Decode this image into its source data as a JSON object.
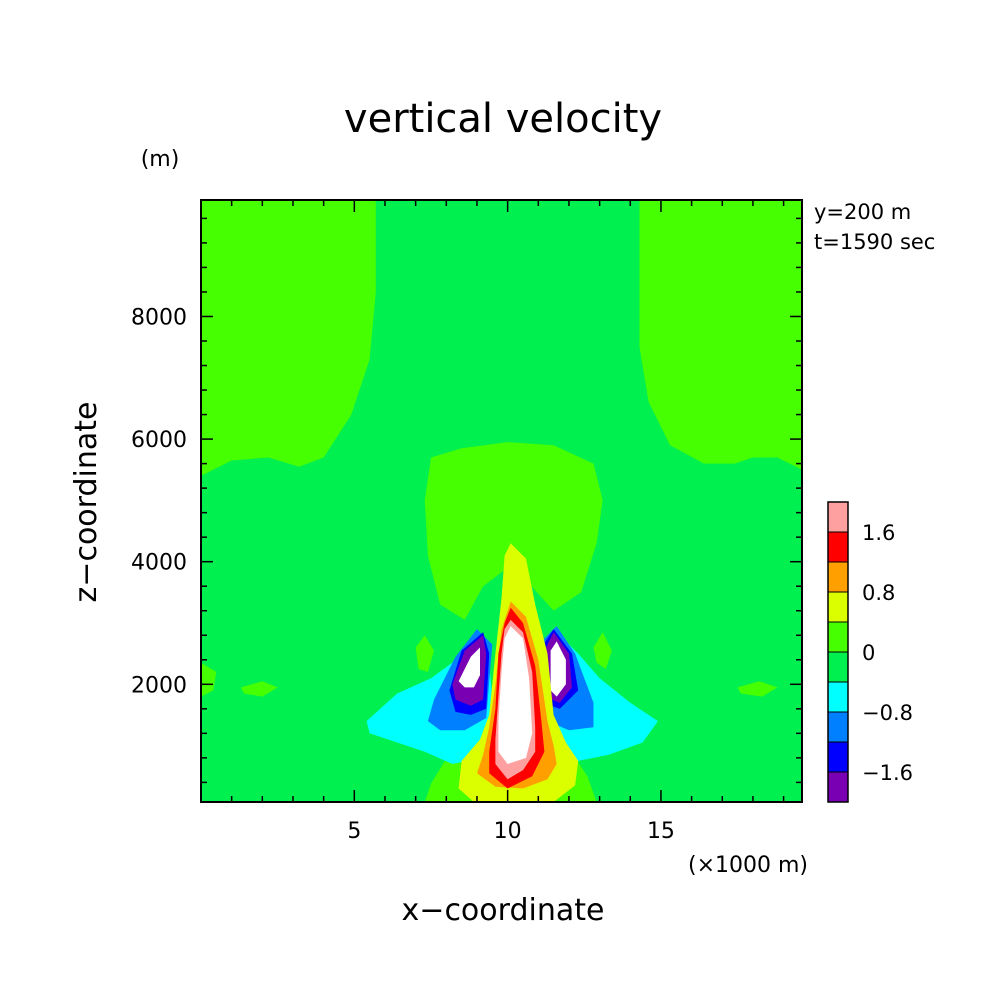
{
  "chart_data": {
    "type": "heatmap",
    "title": "vertical velocity",
    "xlabel": "x−coordinate",
    "ylabel": "z−coordinate",
    "x_unit": "(×1000 m)",
    "y_unit": "(m)",
    "annotations": [
      "y=200 m",
      "t=1590 sec"
    ],
    "xlim": [
      0,
      19.6
    ],
    "ylim": [
      80,
      9900
    ],
    "xticks": [
      5,
      10,
      15
    ],
    "yticks": [
      2000,
      4000,
      6000,
      8000
    ],
    "xtick_labels": [
      "5",
      "10",
      "15"
    ],
    "ytick_labels": [
      "2000",
      "4000",
      "6000",
      "8000"
    ],
    "grid": false,
    "colorbar": {
      "placement": "right",
      "levels": [
        {
          "min": null,
          "max": -1.6,
          "color": "#7a00b4"
        },
        {
          "min": -1.6,
          "max": -1.2,
          "color": "#0000ff"
        },
        {
          "min": -1.2,
          "max": -0.8,
          "color": "#0080ff"
        },
        {
          "min": -0.8,
          "max": -0.4,
          "color": "#00ffff"
        },
        {
          "min": -0.4,
          "max": 0,
          "color": "#00f050"
        },
        {
          "min": 0,
          "max": 0.4,
          "color": "#46ff00"
        },
        {
          "min": 0.4,
          "max": 0.8,
          "color": "#dcff00"
        },
        {
          "min": 0.8,
          "max": 1.2,
          "color": "#ffa000"
        },
        {
          "min": 1.2,
          "max": 1.6,
          "color": "#ff0000"
        },
        {
          "min": 1.6,
          "max": 2.0,
          "color": "#ffa0a0"
        },
        {
          "min": 2.0,
          "max": null,
          "color": "#ffffff"
        }
      ],
      "tick_labels": [
        "−1.6",
        "−0.8",
        "0",
        "0.8",
        "1.6"
      ],
      "tick_values": [
        -1.6,
        -0.8,
        0,
        0.8,
        1.6
      ]
    },
    "regions": [
      {
        "name": "upper-left-positive",
        "level": 0.2,
        "poly": [
          [
            0,
            9900
          ],
          [
            5.7,
            9900
          ],
          [
            5.7,
            8400
          ],
          [
            5.5,
            7300
          ],
          [
            4.9,
            6400
          ],
          [
            4.0,
            5700
          ],
          [
            3.2,
            5550
          ],
          [
            2.2,
            5700
          ],
          [
            1.0,
            5650
          ],
          [
            0,
            5400
          ]
        ]
      },
      {
        "name": "upper-right-positive",
        "level": 0.2,
        "poly": [
          [
            14.3,
            9900
          ],
          [
            19.6,
            9900
          ],
          [
            19.6,
            5500
          ],
          [
            18.8,
            5700
          ],
          [
            18.0,
            5700
          ],
          [
            17.4,
            5600
          ],
          [
            16.4,
            5600
          ],
          [
            15.3,
            5900
          ],
          [
            14.6,
            6600
          ],
          [
            14.3,
            7500
          ],
          [
            14.3,
            8400
          ]
        ]
      },
      {
        "name": "central-positive-plume",
        "level": 0.2,
        "poly": [
          [
            7.5,
            5700
          ],
          [
            8.5,
            5850
          ],
          [
            10.0,
            5950
          ],
          [
            11.5,
            5900
          ],
          [
            12.8,
            5600
          ],
          [
            13.1,
            5000
          ],
          [
            12.9,
            4300
          ],
          [
            12.4,
            3500
          ],
          [
            11.5,
            3200
          ],
          [
            10.6,
            3700
          ],
          [
            10.0,
            3900
          ],
          [
            9.2,
            3600
          ],
          [
            8.6,
            3050
          ],
          [
            7.8,
            3300
          ],
          [
            7.4,
            4100
          ],
          [
            7.3,
            5000
          ]
        ]
      },
      {
        "name": "lower-center-positive",
        "level": 0.2,
        "poly": [
          [
            7.3,
            80
          ],
          [
            7.5,
            380
          ],
          [
            8.2,
            950
          ],
          [
            9.1,
            1300
          ],
          [
            10.0,
            1500
          ],
          [
            11.0,
            1300
          ],
          [
            12.0,
            950
          ],
          [
            12.6,
            500
          ],
          [
            12.9,
            80
          ]
        ]
      },
      {
        "name": "left-lobe-positive",
        "level": 0.2,
        "poly": [
          [
            7.0,
            2600
          ],
          [
            7.3,
            2800
          ],
          [
            7.6,
            2550
          ],
          [
            7.4,
            2200
          ],
          [
            7.1,
            2250
          ]
        ]
      },
      {
        "name": "right-lobe-positive",
        "level": 0.2,
        "poly": [
          [
            12.8,
            2600
          ],
          [
            13.1,
            2850
          ],
          [
            13.4,
            2550
          ],
          [
            13.2,
            2250
          ],
          [
            12.9,
            2350
          ]
        ]
      },
      {
        "name": "left-edge-positive",
        "level": 0.2,
        "poly": [
          [
            0,
            2350
          ],
          [
            0.5,
            2200
          ],
          [
            0.4,
            1900
          ],
          [
            0,
            1800
          ]
        ]
      },
      {
        "name": "left-streak-positive",
        "level": 0.2,
        "poly": [
          [
            1.3,
            1950
          ],
          [
            2.0,
            2050
          ],
          [
            2.5,
            1950
          ],
          [
            2.0,
            1800
          ],
          [
            1.4,
            1850
          ]
        ]
      },
      {
        "name": "right-streak-positive",
        "level": 0.2,
        "poly": [
          [
            17.5,
            1950
          ],
          [
            18.2,
            2050
          ],
          [
            18.8,
            1950
          ],
          [
            18.3,
            1800
          ],
          [
            17.6,
            1850
          ]
        ]
      },
      {
        "name": "left-cyan-lobe",
        "level": -0.6,
        "poly": [
          [
            5.4,
            1400
          ],
          [
            6.4,
            1850
          ],
          [
            7.5,
            2100
          ],
          [
            8.6,
            2500
          ],
          [
            9.4,
            2350
          ],
          [
            9.6,
            1200
          ],
          [
            9.2,
            800
          ],
          [
            8.2,
            700
          ],
          [
            7.3,
            900
          ],
          [
            6.4,
            1050
          ],
          [
            5.5,
            1200
          ]
        ]
      },
      {
        "name": "right-cyan-lobe",
        "level": -0.6,
        "poly": [
          [
            10.6,
            2350
          ],
          [
            11.5,
            2900
          ],
          [
            12.3,
            2500
          ],
          [
            13.0,
            2100
          ],
          [
            14.0,
            1700
          ],
          [
            14.9,
            1400
          ],
          [
            14.4,
            1050
          ],
          [
            13.3,
            850
          ],
          [
            12.3,
            750
          ],
          [
            11.2,
            700
          ],
          [
            10.6,
            1000
          ]
        ]
      },
      {
        "name": "left-blue-lobe",
        "level": -1.0,
        "poly": [
          [
            7.4,
            1400
          ],
          [
            7.6,
            1750
          ],
          [
            8.3,
            2450
          ],
          [
            9.0,
            2900
          ],
          [
            9.5,
            2650
          ],
          [
            9.3,
            1450
          ],
          [
            8.6,
            1250
          ],
          [
            7.8,
            1250
          ]
        ]
      },
      {
        "name": "right-blue-lobe",
        "level": -1.0,
        "poly": [
          [
            11.0,
            2650
          ],
          [
            11.6,
            2950
          ],
          [
            12.2,
            2500
          ],
          [
            12.8,
            1700
          ],
          [
            12.8,
            1300
          ],
          [
            12.0,
            1250
          ],
          [
            11.3,
            1400
          ],
          [
            11.0,
            1800
          ]
        ]
      },
      {
        "name": "left-darkblue-lobe",
        "level": -1.4,
        "poly": [
          [
            8.1,
            1900
          ],
          [
            8.5,
            2550
          ],
          [
            9.2,
            2850
          ],
          [
            9.4,
            2500
          ],
          [
            9.3,
            1600
          ],
          [
            8.8,
            1500
          ],
          [
            8.3,
            1550
          ]
        ]
      },
      {
        "name": "right-darkblue-lobe",
        "level": -1.4,
        "poly": [
          [
            11.1,
            2600
          ],
          [
            11.5,
            2900
          ],
          [
            12.1,
            2500
          ],
          [
            12.3,
            1900
          ],
          [
            11.7,
            1600
          ],
          [
            11.1,
            1700
          ]
        ]
      },
      {
        "name": "left-purple-lobe",
        "level": -1.8,
        "poly": [
          [
            8.2,
            2000
          ],
          [
            8.6,
            2550
          ],
          [
            9.2,
            2800
          ],
          [
            9.3,
            2500
          ],
          [
            9.2,
            1750
          ],
          [
            8.8,
            1650
          ],
          [
            8.3,
            1750
          ]
        ]
      },
      {
        "name": "right-purple-lobe",
        "level": -1.8,
        "poly": [
          [
            11.2,
            2550
          ],
          [
            11.5,
            2850
          ],
          [
            12.0,
            2500
          ],
          [
            12.1,
            1950
          ],
          [
            11.7,
            1700
          ],
          [
            11.2,
            1800
          ]
        ]
      },
      {
        "name": "left-white-core",
        "level": 2.2,
        "poly": [
          [
            8.4,
            2050
          ],
          [
            8.8,
            2450
          ],
          [
            9.1,
            2600
          ],
          [
            9.1,
            2150
          ],
          [
            8.9,
            1950
          ],
          [
            8.6,
            1950
          ]
        ]
      },
      {
        "name": "right-white-core",
        "level": 2.2,
        "poly": [
          [
            11.4,
            2550
          ],
          [
            11.6,
            2700
          ],
          [
            11.9,
            2400
          ],
          [
            11.9,
            2000
          ],
          [
            11.6,
            1800
          ],
          [
            11.4,
            1900
          ]
        ]
      },
      {
        "name": "central-yellow-column",
        "level": 0.6,
        "poly": [
          [
            10.1,
            4300
          ],
          [
            10.6,
            4050
          ],
          [
            10.9,
            3300
          ],
          [
            11.3,
            2500
          ],
          [
            11.5,
            1500
          ],
          [
            11.9,
            1050
          ],
          [
            12.3,
            750
          ],
          [
            12.2,
            350
          ],
          [
            11.5,
            80
          ],
          [
            8.9,
            80
          ],
          [
            8.4,
            300
          ],
          [
            8.5,
            750
          ],
          [
            9.1,
            1100
          ],
          [
            9.4,
            1500
          ],
          [
            9.6,
            2500
          ],
          [
            9.8,
            3400
          ],
          [
            9.9,
            4100
          ]
        ]
      },
      {
        "name": "central-orange-column",
        "level": 1.0,
        "poly": [
          [
            10.1,
            3350
          ],
          [
            10.6,
            3100
          ],
          [
            11.0,
            2400
          ],
          [
            11.3,
            1400
          ],
          [
            11.5,
            1000
          ],
          [
            11.6,
            700
          ],
          [
            11.3,
            450
          ],
          [
            10.5,
            300
          ],
          [
            9.6,
            330
          ],
          [
            9.0,
            550
          ],
          [
            9.2,
            850
          ],
          [
            9.4,
            1300
          ],
          [
            9.6,
            2000
          ],
          [
            9.8,
            2900
          ]
        ]
      },
      {
        "name": "central-red-column",
        "level": 1.4,
        "poly": [
          [
            10.1,
            3250
          ],
          [
            10.5,
            3000
          ],
          [
            10.9,
            2300
          ],
          [
            11.1,
            1400
          ],
          [
            11.2,
            900
          ],
          [
            10.8,
            500
          ],
          [
            10.0,
            300
          ],
          [
            9.4,
            550
          ],
          [
            9.4,
            900
          ],
          [
            9.6,
            1600
          ],
          [
            9.7,
            2500
          ],
          [
            9.9,
            3000
          ]
        ]
      },
      {
        "name": "central-pink-column",
        "level": 1.8,
        "poly": [
          [
            10.1,
            3050
          ],
          [
            10.5,
            2850
          ],
          [
            10.8,
            2200
          ],
          [
            10.9,
            1300
          ],
          [
            10.9,
            900
          ],
          [
            10.5,
            600
          ],
          [
            10.0,
            450
          ],
          [
            9.6,
            700
          ],
          [
            9.6,
            1100
          ],
          [
            9.7,
            1800
          ],
          [
            9.8,
            2500
          ],
          [
            9.9,
            2900
          ]
        ]
      },
      {
        "name": "central-white-core",
        "level": 2.2,
        "poly": [
          [
            10.1,
            2950
          ],
          [
            10.5,
            2750
          ],
          [
            10.7,
            2100
          ],
          [
            10.8,
            1200
          ],
          [
            10.6,
            800
          ],
          [
            10.0,
            700
          ],
          [
            9.7,
            900
          ],
          [
            9.7,
            1400
          ],
          [
            9.8,
            2200
          ],
          [
            9.9,
            2750
          ]
        ]
      }
    ]
  }
}
